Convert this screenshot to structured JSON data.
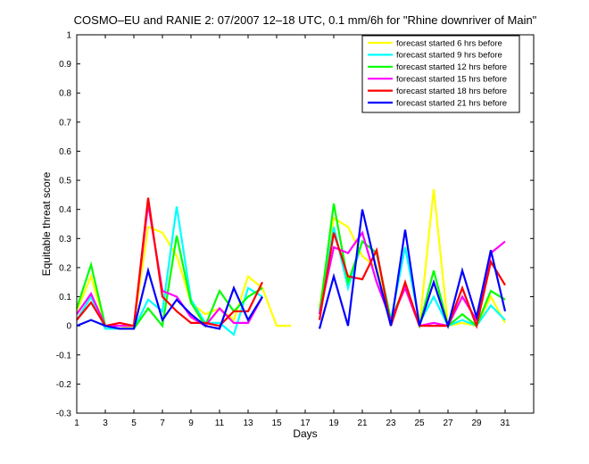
{
  "chart_data": {
    "type": "line",
    "title": "COSMO–EU and RANIE 2: 07/2007 12–18 UTC, 0.1 mm/6h for \"Rhine downriver of Main\"",
    "xlabel": "Days",
    "ylabel": "Equitable threat score",
    "xlim": [
      1,
      33
    ],
    "ylim": [
      -0.3,
      1
    ],
    "xticks": [
      1,
      3,
      5,
      7,
      9,
      11,
      13,
      15,
      17,
      19,
      21,
      23,
      25,
      27,
      29,
      31
    ],
    "yticks": [
      -0.3,
      -0.2,
      -0.1,
      0,
      0.1,
      0.2,
      0.3,
      0.4,
      0.5,
      0.6,
      0.7,
      0.8,
      0.9,
      1
    ],
    "grid": false,
    "legend_position": "top-right",
    "series": [
      {
        "name": "forecast started 6 hrs before",
        "color": "#ffff00",
        "x": [
          1,
          2,
          3,
          4,
          5,
          6,
          7,
          8,
          9,
          10,
          11,
          12,
          13,
          14,
          15,
          16,
          null,
          18,
          19,
          20,
          21,
          22,
          23,
          24,
          25,
          26,
          27,
          28,
          29,
          30,
          31
        ],
        "values": [
          0.05,
          0.17,
          0.0,
          -0.01,
          0.0,
          0.34,
          0.32,
          0.24,
          0.08,
          0.04,
          0.06,
          0.02,
          0.17,
          0.13,
          0.0,
          0.0,
          null,
          0.06,
          0.37,
          0.34,
          0.24,
          0.2,
          0.02,
          0.13,
          0.0,
          0.47,
          0.0,
          0.01,
          0.0,
          0.1,
          0.01
        ]
      },
      {
        "name": "forecast started 9 hrs before",
        "color": "#00ffff",
        "x": [
          1,
          2,
          3,
          4,
          5,
          6,
          7,
          8,
          9,
          10,
          11,
          12,
          13,
          14,
          15,
          16,
          null,
          18,
          19,
          20,
          21,
          22,
          23,
          24,
          25,
          26,
          27,
          28,
          29,
          30,
          31
        ],
        "values": [
          0.02,
          0.1,
          -0.01,
          -0.01,
          -0.01,
          0.09,
          0.05,
          0.41,
          0.09,
          0.01,
          0.01,
          -0.03,
          0.13,
          0.1,
          null,
          null,
          null,
          0.05,
          0.34,
          0.13,
          0.29,
          0.25,
          0.02,
          0.27,
          0.01,
          0.1,
          0.0,
          0.02,
          0.0,
          0.07,
          0.02
        ]
      },
      {
        "name": "forecast started 12 hrs before",
        "color": "#00ff00",
        "x": [
          1,
          2,
          3,
          4,
          5,
          6,
          7,
          8,
          9,
          10,
          11,
          12,
          13,
          14,
          15,
          16,
          null,
          18,
          19,
          20,
          21,
          22,
          23,
          24,
          25,
          26,
          27,
          28,
          29,
          30,
          31
        ],
        "values": [
          0.06,
          0.21,
          0.0,
          -0.01,
          -0.01,
          0.06,
          0.0,
          0.31,
          0.08,
          0.0,
          0.12,
          0.05,
          0.1,
          0.13,
          null,
          null,
          null,
          0.04,
          0.42,
          0.15,
          0.29,
          0.25,
          0.02,
          0.14,
          0.0,
          0.19,
          0.0,
          0.04,
          0.0,
          0.12,
          0.09
        ]
      },
      {
        "name": "forecast started 15 hrs before",
        "color": "#ff00ff",
        "x": [
          1,
          2,
          3,
          4,
          5,
          6,
          7,
          8,
          9,
          10,
          11,
          12,
          13,
          14,
          15,
          16,
          null,
          18,
          19,
          20,
          21,
          22,
          23,
          24,
          25,
          26,
          27,
          28,
          29,
          30,
          31
        ],
        "values": [
          0.04,
          0.11,
          0.0,
          0.0,
          0.0,
          0.42,
          0.12,
          0.1,
          0.03,
          0.0,
          0.06,
          0.01,
          0.01,
          0.1,
          null,
          null,
          null,
          0.04,
          0.27,
          0.25,
          0.32,
          0.15,
          0.02,
          0.13,
          0.0,
          0.01,
          0.0,
          0.1,
          0.02,
          0.25,
          0.29
        ]
      },
      {
        "name": "forecast started 18 hrs before",
        "color": "#ff0000",
        "x": [
          1,
          2,
          3,
          4,
          5,
          6,
          7,
          8,
          9,
          10,
          11,
          12,
          13,
          14,
          15,
          16,
          null,
          18,
          19,
          20,
          21,
          22,
          23,
          24,
          25,
          26,
          27,
          28,
          29,
          30,
          31
        ],
        "values": [
          0.02,
          0.08,
          0.0,
          0.01,
          0.0,
          0.44,
          0.1,
          0.05,
          0.01,
          0.01,
          0.0,
          0.05,
          0.05,
          0.15,
          null,
          null,
          null,
          0.02,
          0.32,
          0.17,
          0.16,
          0.26,
          0.0,
          0.15,
          0.0,
          0.0,
          0.0,
          0.13,
          0.0,
          0.22,
          0.14
        ]
      },
      {
        "name": "forecast started 21 hrs before",
        "color": "#0000ff",
        "x": [
          1,
          2,
          3,
          4,
          5,
          6,
          7,
          8,
          9,
          10,
          11,
          12,
          13,
          14,
          15,
          16,
          null,
          18,
          19,
          20,
          21,
          22,
          23,
          24,
          25,
          26,
          27,
          28,
          29,
          30,
          31
        ],
        "values": [
          0.0,
          0.02,
          0.0,
          -0.01,
          -0.01,
          0.19,
          0.02,
          0.09,
          0.04,
          0.0,
          -0.01,
          0.13,
          0.02,
          0.1,
          null,
          null,
          null,
          -0.01,
          0.17,
          0.0,
          0.4,
          0.19,
          0.0,
          0.33,
          0.0,
          0.15,
          0.0,
          0.19,
          0.03,
          0.26,
          0.05
        ]
      }
    ]
  }
}
